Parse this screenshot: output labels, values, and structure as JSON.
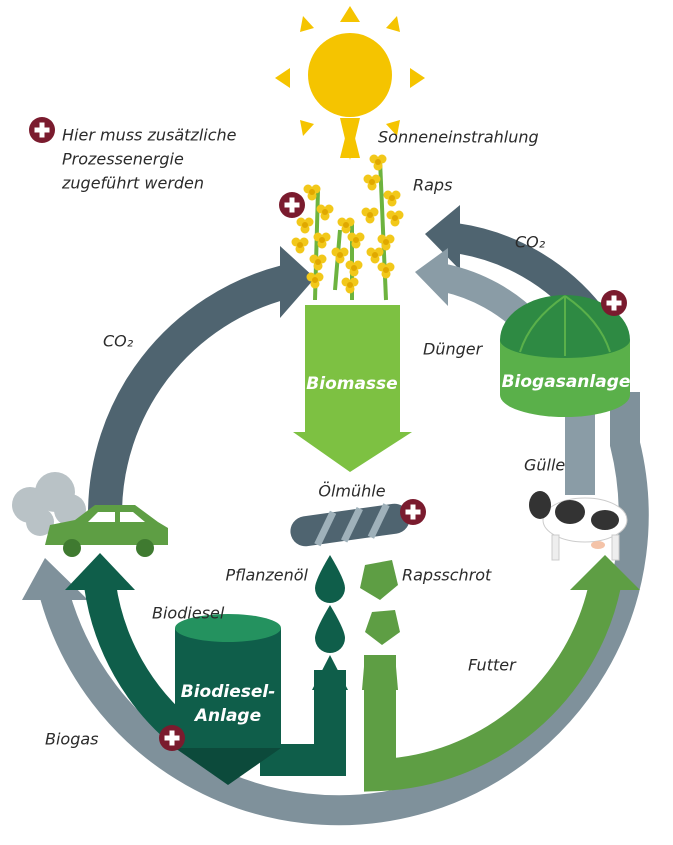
{
  "legend": {
    "lines": [
      "Hier muss zusätzliche",
      "Prozessenergie",
      "zugeführt werden"
    ]
  },
  "labels": {
    "sun": "Sonneneinstrahlung",
    "raps": "Raps",
    "co2_right": "CO₂",
    "co2_left": "CO₂",
    "duenger": "Dünger",
    "biomasse": "Biomasse",
    "biogasanlage": "Biogasanlage",
    "guelle": "Gülle",
    "oelmuehle": "Ölmühle",
    "pflanzenoel": "Pflanzenöl",
    "rapsschrot": "Rapsschrot",
    "biodiesel": "Biodiesel",
    "futter": "Futter",
    "biodiesel_anlage": [
      "Biodiesel-",
      "Anlage"
    ],
    "biogas": "Biogas"
  }
}
